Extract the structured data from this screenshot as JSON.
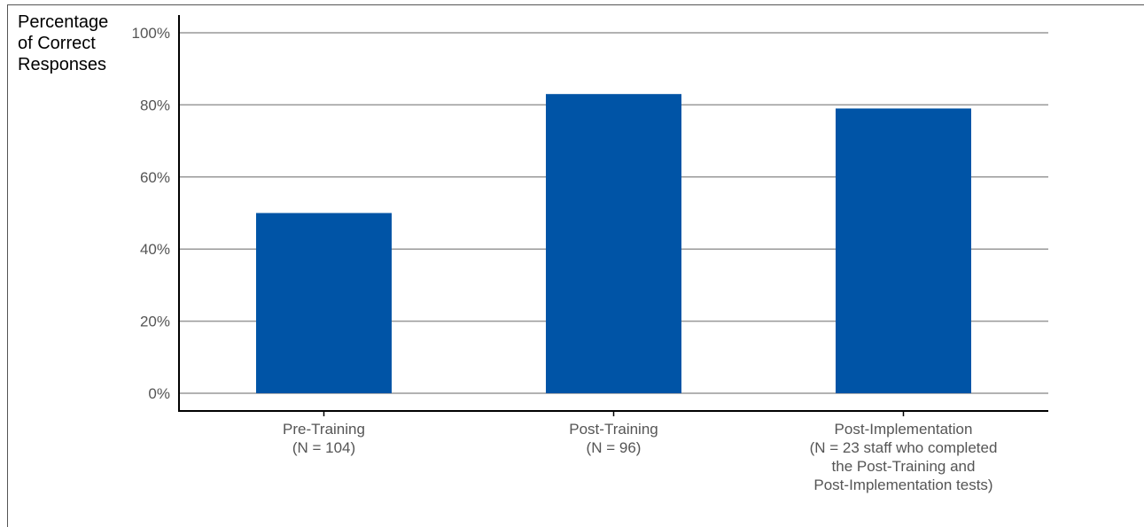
{
  "chart_data": {
    "type": "bar",
    "ylabel_lines": [
      "Percentage",
      "of Correct",
      "Responses"
    ],
    "categories": [
      [
        "Pre-Training",
        "(N = 104)"
      ],
      [
        "Post-Training",
        "(N = 96)"
      ],
      [
        "Post-Implementation",
        "(N = 23 staff who completed",
        "the Post-Training and",
        "Post-Implementation tests)"
      ]
    ],
    "values": [
      50,
      83,
      79
    ],
    "ylim": [
      0,
      100
    ],
    "yticks": [
      0,
      20,
      40,
      60,
      80,
      100
    ],
    "ytick_labels": [
      "0%",
      "20%",
      "40%",
      "60%",
      "80%",
      "100%"
    ],
    "bar_color": "#0054A6",
    "grid": true
  }
}
